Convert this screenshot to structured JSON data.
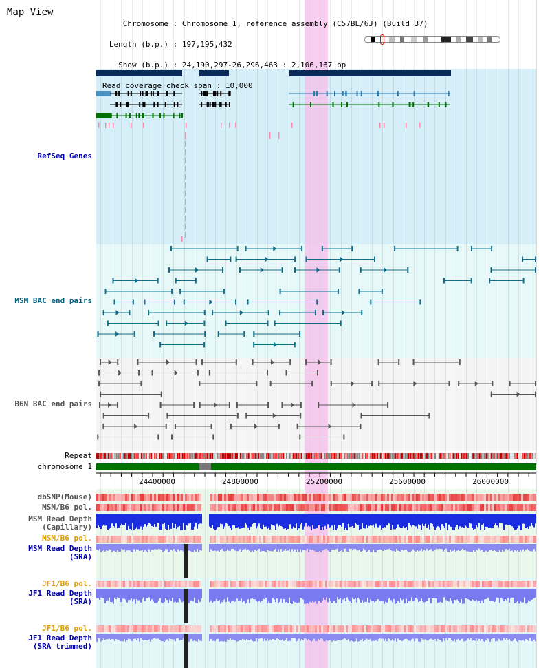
{
  "title": "Map View",
  "info": {
    "chromosome_label": "Chromosome",
    "chromosome_value": "Chromosome 1, reference assembly (C57BL/6J) (Build 37)",
    "length_label": "Length (b.p.)",
    "length_value": "197,195,432",
    "show_label": "Show (b.p.)",
    "show_value": "24,190,297-26,296,463 : 2,106,167 bp",
    "coverage_label": "Read coverage check span",
    "coverage_value": "10,000"
  },
  "tracks": {
    "refseq": "RefSeq Genes",
    "msm_bac": "MSM BAC end pairs",
    "b6n_bac": "B6N BAC end pairs",
    "repeat": "Repeat",
    "chromosome": "chromosome 1",
    "dbsnp": "dbSNP(Mouse)",
    "msm_b6_pol": "MSM/B6 pol.",
    "msm_depth_cap_1": "MSM Read Depth",
    "msm_depth_cap_2": "(Capillary)",
    "msm_b6_pol2": "MSM/B6 pol.",
    "msm_depth_sra_1": "MSM Read Depth",
    "msm_depth_sra_2": "(SRA)",
    "jf1_b6_pol": "JF1/B6 pol.",
    "jf1_depth_1": "JF1 Read Depth",
    "jf1_depth_2": "(SRA)",
    "jf1_b6_pol2": "JF1/B6 pol.",
    "jf1_trim_1": "JF1 Read Depth",
    "jf1_trim_2": "(SRA trimmed)"
  },
  "axis": {
    "ticks": [
      "24400000",
      "24800000",
      "25200000",
      "25600000",
      "26000000"
    ]
  },
  "colors": {
    "refseq_bg": "#d6eef8",
    "msm_bac_bg": "#e6f8f8",
    "b6n_bac_bg": "#f4f4f4",
    "refseq_label": "#0000aa",
    "msm_label": "#006080",
    "b6n_label": "#555555",
    "orange_label": "#e0a000",
    "blue_label": "#0000aa",
    "chrom_bar": "#007000",
    "highlight": "#f5bdeb"
  }
}
